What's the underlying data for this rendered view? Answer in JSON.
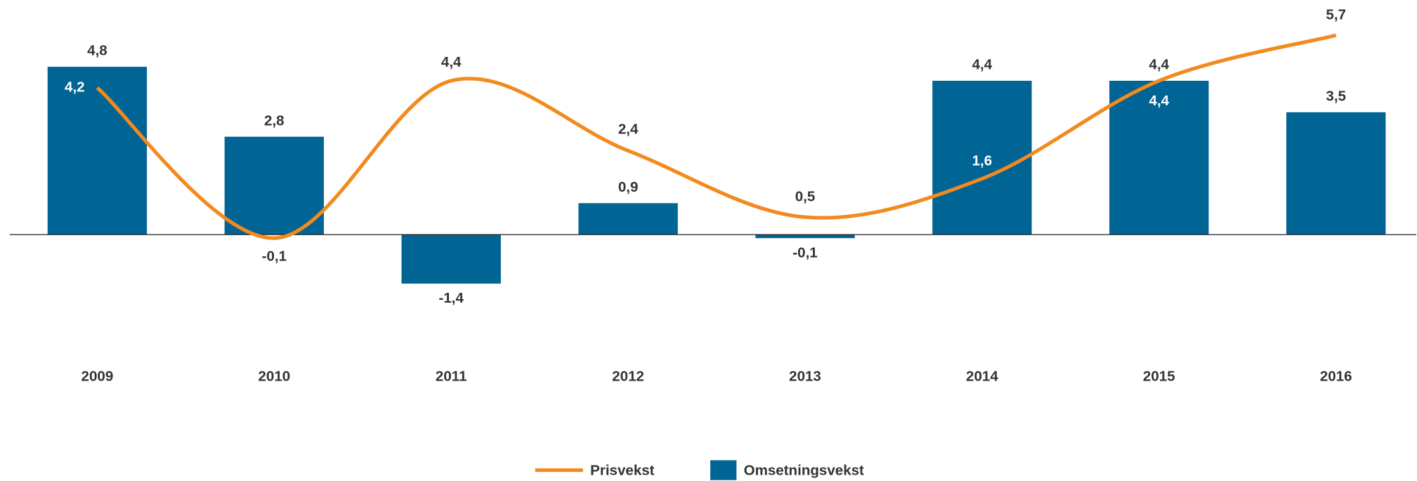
{
  "chart_data": {
    "type": "bar-line",
    "categories": [
      "2009",
      "2010",
      "2011",
      "2012",
      "2013",
      "2014",
      "2015",
      "2016"
    ],
    "series": [
      {
        "name": "Omsetningsvekst",
        "type": "bar",
        "color": "#006494",
        "values": [
          4.8,
          2.8,
          -1.4,
          0.9,
          -0.1,
          4.4,
          4.4,
          3.5
        ],
        "value_labels": [
          "4,8",
          "2,8",
          "-1,4",
          "0,9",
          "-0,1",
          "4,4",
          "4,4",
          "3,5"
        ]
      },
      {
        "name": "Prisvekst",
        "type": "line",
        "color": "#f28a1e",
        "values": [
          4.2,
          -0.1,
          4.4,
          2.4,
          0.5,
          1.6,
          4.4,
          5.7
        ],
        "value_labels": [
          "4,2",
          "-0,1",
          "4,4",
          "2,4",
          "0,5",
          "1,6",
          "4,4",
          "5,7"
        ]
      }
    ],
    "legend": "bottom"
  }
}
